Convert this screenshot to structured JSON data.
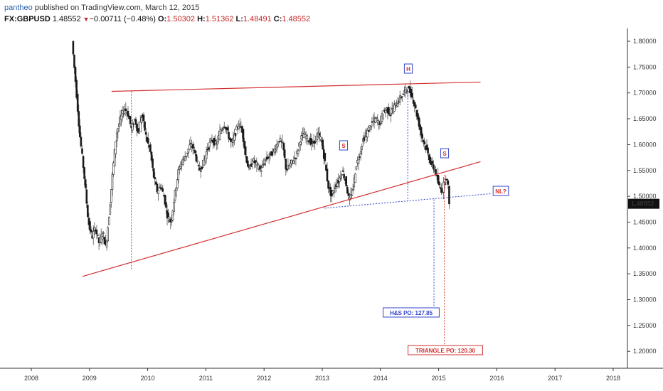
{
  "header": {
    "author": "pantheo",
    "published": "published on TradingView.com, March 12, 2015",
    "symbol": "FX:GBPUSD",
    "price": "1.48552",
    "change_arrow": "▼",
    "change": "−0.00711 (−0.48%)",
    "o_label": "O:",
    "o_val": "1.50302",
    "h_label": "H:",
    "h_val": "1.51362",
    "l_label": "L:",
    "l_val": "1.48491",
    "c_label": "C:",
    "c_val": "1.48552"
  },
  "colors": {
    "candle": "#1a1a1a",
    "pattern_line": "#d32f2f",
    "projection_red": "#d32f2f",
    "projection_blue": "#3344cc",
    "price_tag": "#111111"
  },
  "chart_data": {
    "type": "line",
    "x_ticks": [
      "2008",
      "2009",
      "2010",
      "2011",
      "2012",
      "2013",
      "2014",
      "2015",
      "2016",
      "2017",
      "2018"
    ],
    "y_ticks": [
      "1.80000",
      "1.75000",
      "1.70000",
      "1.65000",
      "1.60000",
      "1.55000",
      "1.50000",
      "1.45000",
      "1.40000",
      "1.35000",
      "1.30000",
      "1.25000",
      "1.20000"
    ],
    "y_tick_values": [
      1.8,
      1.75,
      1.7,
      1.65,
      1.6,
      1.55,
      1.5,
      1.45,
      1.4,
      1.35,
      1.3,
      1.25,
      1.2
    ],
    "ylim": [
      1.155,
      1.825
    ],
    "xlim": [
      2007.6,
      2018.4
    ],
    "last_price_label": "1.48552",
    "series": [
      {
        "values": [
          [
            2008.72,
            1.8
          ],
          [
            2008.78,
            1.72
          ],
          [
            2008.85,
            1.62
          ],
          [
            2008.92,
            1.55
          ],
          [
            2009.0,
            1.45
          ],
          [
            2009.06,
            1.42
          ],
          [
            2009.12,
            1.44
          ],
          [
            2009.18,
            1.41
          ],
          [
            2009.25,
            1.43
          ],
          [
            2009.3,
            1.4
          ],
          [
            2009.36,
            1.47
          ],
          [
            2009.42,
            1.55
          ],
          [
            2009.48,
            1.62
          ],
          [
            2009.55,
            1.65
          ],
          [
            2009.62,
            1.67
          ],
          [
            2009.68,
            1.66
          ],
          [
            2009.74,
            1.63
          ],
          [
            2009.8,
            1.65
          ],
          [
            2009.86,
            1.62
          ],
          [
            2009.92,
            1.66
          ],
          [
            2010.0,
            1.61
          ],
          [
            2010.06,
            1.59
          ],
          [
            2010.12,
            1.54
          ],
          [
            2010.18,
            1.51
          ],
          [
            2010.24,
            1.52
          ],
          [
            2010.3,
            1.5
          ],
          [
            2010.36,
            1.46
          ],
          [
            2010.42,
            1.45
          ],
          [
            2010.48,
            1.5
          ],
          [
            2010.55,
            1.55
          ],
          [
            2010.62,
            1.57
          ],
          [
            2010.68,
            1.58
          ],
          [
            2010.75,
            1.6
          ],
          [
            2010.82,
            1.59
          ],
          [
            2010.9,
            1.55
          ],
          [
            2010.96,
            1.56
          ],
          [
            2011.04,
            1.59
          ],
          [
            2011.12,
            1.61
          ],
          [
            2011.2,
            1.6
          ],
          [
            2011.28,
            1.63
          ],
          [
            2011.34,
            1.64
          ],
          [
            2011.4,
            1.62
          ],
          [
            2011.46,
            1.6
          ],
          [
            2011.52,
            1.62
          ],
          [
            2011.58,
            1.64
          ],
          [
            2011.64,
            1.63
          ],
          [
            2011.7,
            1.58
          ],
          [
            2011.76,
            1.55
          ],
          [
            2011.82,
            1.57
          ],
          [
            2011.9,
            1.56
          ],
          [
            2011.96,
            1.55
          ],
          [
            2012.04,
            1.57
          ],
          [
            2012.12,
            1.58
          ],
          [
            2012.2,
            1.59
          ],
          [
            2012.28,
            1.61
          ],
          [
            2012.34,
            1.6
          ],
          [
            2012.4,
            1.55
          ],
          [
            2012.46,
            1.56
          ],
          [
            2012.52,
            1.57
          ],
          [
            2012.58,
            1.58
          ],
          [
            2012.64,
            1.61
          ],
          [
            2012.7,
            1.62
          ],
          [
            2012.78,
            1.61
          ],
          [
            2012.86,
            1.6
          ],
          [
            2012.94,
            1.62
          ],
          [
            2013.0,
            1.61
          ],
          [
            2013.06,
            1.57
          ],
          [
            2013.12,
            1.52
          ],
          [
            2013.18,
            1.5
          ],
          [
            2013.24,
            1.52
          ],
          [
            2013.3,
            1.53
          ],
          [
            2013.36,
            1.55
          ],
          [
            2013.42,
            1.53
          ],
          [
            2013.48,
            1.49
          ],
          [
            2013.54,
            1.51
          ],
          [
            2013.6,
            1.56
          ],
          [
            2013.66,
            1.58
          ],
          [
            2013.72,
            1.61
          ],
          [
            2013.78,
            1.62
          ],
          [
            2013.86,
            1.64
          ],
          [
            2013.94,
            1.65
          ],
          [
            2014.0,
            1.64
          ],
          [
            2014.06,
            1.66
          ],
          [
            2014.12,
            1.67
          ],
          [
            2014.18,
            1.66
          ],
          [
            2014.24,
            1.67
          ],
          [
            2014.3,
            1.68
          ],
          [
            2014.36,
            1.69
          ],
          [
            2014.42,
            1.7
          ],
          [
            2014.48,
            1.71
          ],
          [
            2014.54,
            1.7
          ],
          [
            2014.6,
            1.68
          ],
          [
            2014.66,
            1.65
          ],
          [
            2014.72,
            1.62
          ],
          [
            2014.78,
            1.6
          ],
          [
            2014.84,
            1.58
          ],
          [
            2014.9,
            1.56
          ],
          [
            2014.96,
            1.55
          ],
          [
            2015.02,
            1.52
          ],
          [
            2015.08,
            1.51
          ],
          [
            2015.14,
            1.54
          ],
          [
            2015.18,
            1.52
          ],
          [
            2015.2,
            1.49
          ]
        ]
      }
    ],
    "annotations": [
      {
        "label": "H"
      },
      {
        "label": "S"
      },
      {
        "label": "S"
      },
      {
        "label": "NL?"
      },
      {
        "label": "H&S PO: 127.85"
      },
      {
        "label": "TRIANGLE PO: 120.30"
      }
    ]
  }
}
